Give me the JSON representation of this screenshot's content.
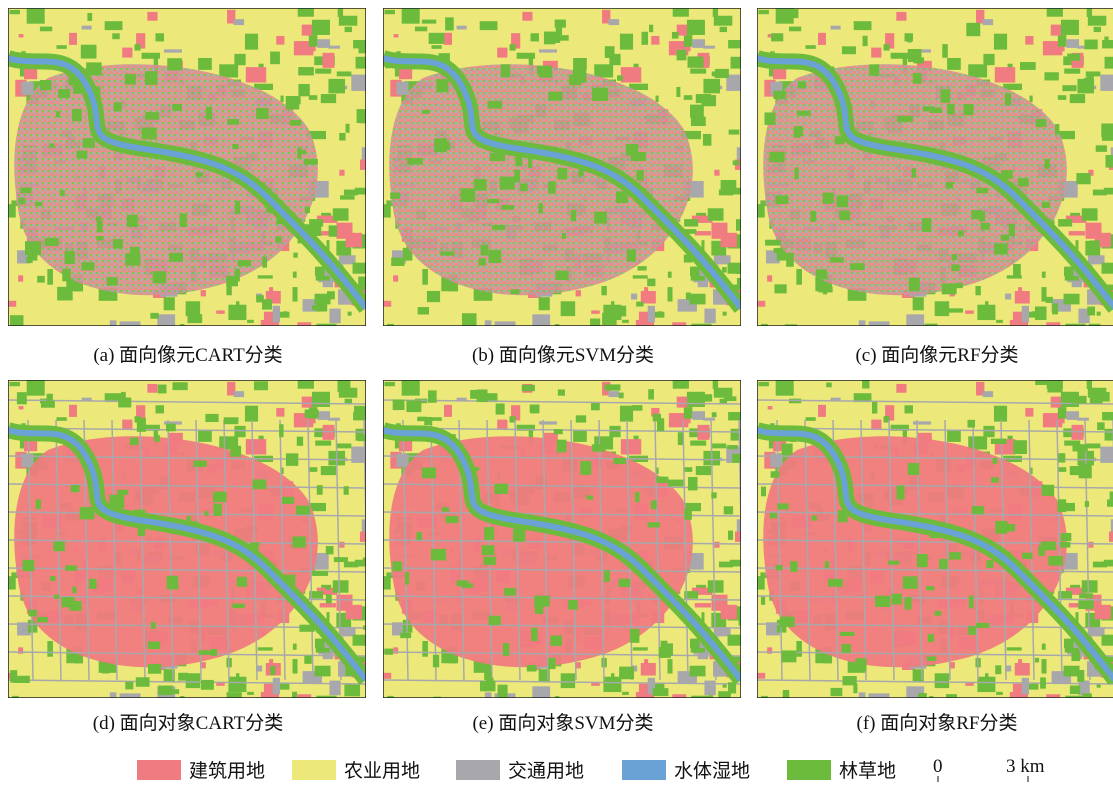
{
  "panels": [
    {
      "caption": "(a) 面向像元CART分类"
    },
    {
      "caption": "(b) 面向像元SVM分类"
    },
    {
      "caption": "(c) 面向像元RF分类"
    },
    {
      "caption": "(d) 面向对象CART分类"
    },
    {
      "caption": "(e) 面向对象SVM分类"
    },
    {
      "caption": "(f) 面向对象RF分类"
    }
  ],
  "legend": {
    "items": [
      {
        "label": "建筑用地",
        "color": "#f07b80"
      },
      {
        "label": "农业用地",
        "color": "#ece97a"
      },
      {
        "label": "交通用地",
        "color": "#a8a8ac"
      },
      {
        "label": "水体湿地",
        "color": "#6aa2d6"
      },
      {
        "label": "林草地",
        "color": "#6cbb3c"
      }
    ]
  },
  "scale_bar": {
    "labels": [
      "0",
      "3 km"
    ]
  }
}
